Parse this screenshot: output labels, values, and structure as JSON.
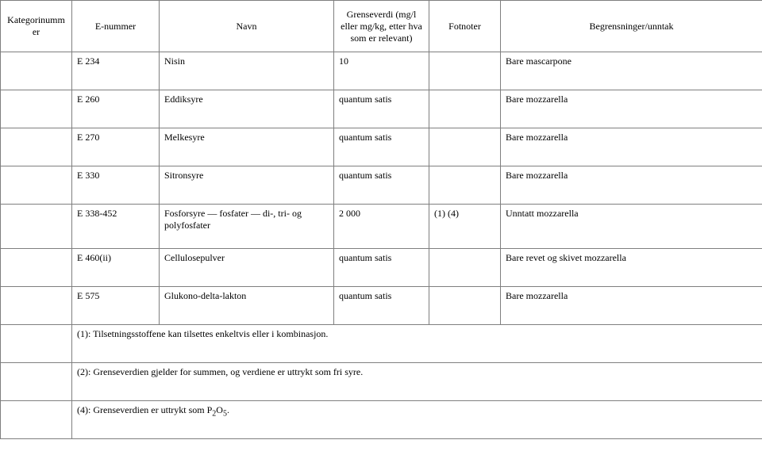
{
  "columns": [
    "Kategorinummer",
    "E-nummer",
    "Navn",
    "Grenseverdi (mg/l eller mg/kg, etter hva som er relevant)",
    "Fotnoter",
    "Begrensninger/unntak"
  ],
  "rows": [
    {
      "cat": "",
      "enum": "E 234",
      "navn": "Nisin",
      "grense": "10",
      "fot": "",
      "begr": "Bare mascarpone"
    },
    {
      "cat": "",
      "enum": "E 260",
      "navn": "Eddiksyre",
      "grense": "quantum satis",
      "fot": "",
      "begr": "Bare mozzarella"
    },
    {
      "cat": "",
      "enum": "E 270",
      "navn": "Melkesyre",
      "grense": "quantum satis",
      "fot": "",
      "begr": "Bare mozzarella"
    },
    {
      "cat": "",
      "enum": "E 330",
      "navn": "Sitronsyre",
      "grense": "quantum satis",
      "fot": "",
      "begr": "Bare mozzarella"
    },
    {
      "cat": "",
      "enum": "E 338-452",
      "navn": "Fosforsyre — fosfater — di-, tri- og polyfosfater",
      "grense": "2 000",
      "fot": "(1) (4)",
      "begr": "Unntatt mozzarella"
    },
    {
      "cat": "",
      "enum": "E 460(ii)",
      "navn": "Cellulosepulver",
      "grense": "quantum satis",
      "fot": "",
      "begr": "Bare revet og skivet mozzarella"
    },
    {
      "cat": "",
      "enum": "E 575",
      "navn": "Glukono-delta-lakton",
      "grense": "quantum satis",
      "fot": "",
      "begr": "Bare mozzarella"
    }
  ],
  "notes": [
    "(1): Tilsetningsstoffene kan tilsettes enkeltvis eller i kombinasjon.",
    "(2): Grenseverdien gjelder for summen, og verdiene er uttrykt som fri syre."
  ],
  "note_p2o5_prefix": "(4): Grenseverdien er uttrykt som P",
  "note_p2o5_two": "2",
  "note_p2o5_o": "O",
  "note_p2o5_five": "5",
  "note_p2o5_dot": "."
}
